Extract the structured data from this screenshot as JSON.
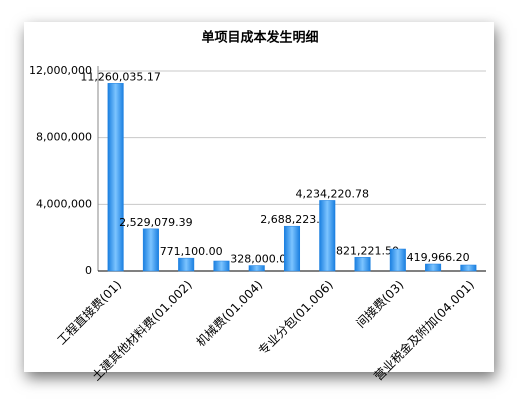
{
  "chart_data": {
    "type": "bar",
    "title": "单项目成本发生明细",
    "categories": [
      "工程直接费(01)",
      null,
      "土建其他材料费(01.002)",
      null,
      "机械费(01.004)",
      null,
      "专业分包(01.006)",
      null,
      "间接费(03)",
      null,
      "营业税金及附加(04.001)"
    ],
    "values": [
      11260035.17,
      2529079.39,
      771100.0,
      600000,
      328000.0,
      2688223.0,
      4234220.78,
      821221.5,
      1320000,
      419966.2,
      360000
    ],
    "value_labels": [
      "11,260,035.17",
      "2,529,079.39",
      "771,100.00",
      null,
      "328,000.00",
      "2,688,223.00",
      "4,234,220.78",
      "821,221.50",
      null,
      "419,966.20",
      null
    ],
    "color": "#1a7fe0",
    "ylim": [
      0,
      12000000
    ],
    "yticks": [
      0,
      {
        "value": 4000000,
        "label": "4,000,000"
      },
      {
        "value": 8000000,
        "label": "8,000,000"
      },
      {
        "value": 12000000,
        "label": "12,000,000"
      }
    ],
    "grid": true
  }
}
